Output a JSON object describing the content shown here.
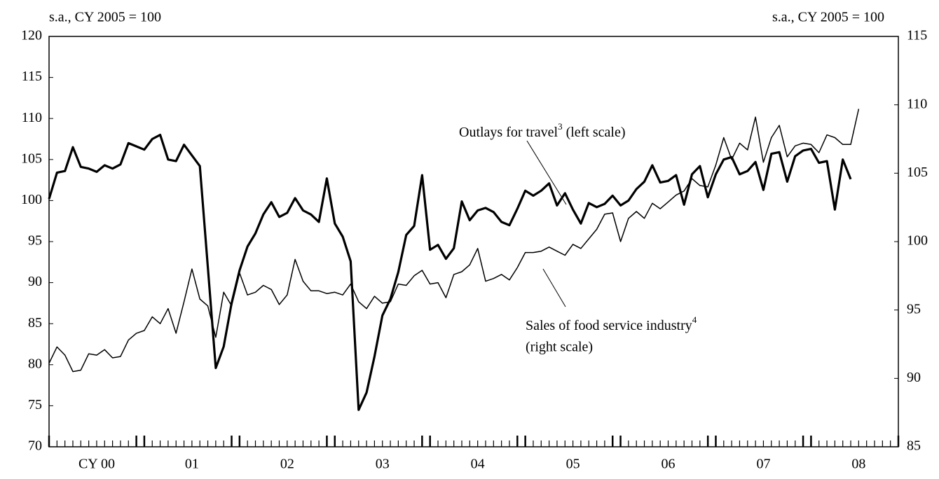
{
  "chart_data": {
    "type": "line",
    "ylabel": "s.a., CY 2005 = 100",
    "y2label": "s.a., CY 2005 = 100",
    "categories": [
      null,
      null,
      null,
      null,
      null,
      null,
      "CY 00",
      null,
      null,
      null,
      null,
      null,
      null,
      null,
      null,
      null,
      null,
      null,
      "01",
      null,
      null,
      null,
      null,
      null,
      null,
      null,
      null,
      null,
      null,
      null,
      "02",
      null,
      null,
      null,
      null,
      null,
      null,
      null,
      null,
      null,
      null,
      null,
      "03",
      null,
      null,
      null,
      null,
      null,
      null,
      null,
      null,
      null,
      null,
      null,
      "04",
      null,
      null,
      null,
      null,
      null,
      null,
      null,
      null,
      null,
      null,
      null,
      "05",
      null,
      null,
      null,
      null,
      null,
      null,
      null,
      null,
      null,
      null,
      null,
      "06",
      null,
      null,
      null,
      null,
      null,
      null,
      null,
      null,
      null,
      null,
      null,
      "07",
      null,
      null,
      null,
      null,
      null,
      null,
      null,
      null,
      null,
      null,
      null,
      "08",
      null,
      null,
      null,
      null,
      null
    ],
    "series": [
      {
        "name": "Outlays for travel",
        "color": "#000000",
        "axis": "y",
        "values": [
          100.2,
          103.4,
          103.6,
          106.5,
          104.1,
          103.9,
          103.5,
          104.3,
          103.9,
          104.4,
          107.0,
          106.6,
          106.2,
          107.5,
          108.0,
          105.0,
          104.8,
          106.8,
          105.5,
          104.2,
          92.0,
          79.6,
          82.2,
          87.5,
          91.5,
          94.4,
          96.0,
          98.3,
          99.8,
          98.0,
          98.5,
          100.3,
          98.8,
          98.3,
          97.4,
          102.7,
          97.2,
          95.6,
          92.6,
          74.5,
          76.6,
          81,
          86,
          88,
          91.3,
          95.8,
          96.9,
          103.1,
          94,
          94.6,
          92.9,
          94.2,
          99.9,
          97.6,
          98.8,
          99.1,
          98.6,
          97.4,
          97.0,
          99,
          101.2,
          100.6,
          101.2,
          102.1,
          99.4,
          100.9,
          98.9,
          97.2,
          99.7,
          99.2,
          99.6,
          100.6,
          99.4,
          100,
          101.4,
          102.3,
          104.3,
          102.2,
          102.4,
          103.1,
          99.5,
          103.2,
          104.2,
          100.4,
          103.2,
          105,
          105.3,
          103.2,
          103.6,
          104.7,
          101.3,
          105.7,
          105.9,
          102.3,
          105.4,
          106.1,
          106.3,
          104.6,
          104.8,
          98.9,
          105,
          102.6,
          null,
          null,
          null,
          null,
          null,
          null
        ]
      },
      {
        "name": "Sales of food service industry",
        "color": "#000000",
        "axis": "y2",
        "values": [
          91.1,
          92.3,
          91.7,
          90.5,
          90.6,
          91.8,
          91.7,
          92.1,
          91.5,
          91.6,
          92.8,
          93.3,
          93.5,
          94.5,
          94.0,
          95.1,
          93.3,
          95.6,
          98.0,
          95.8,
          95.3,
          93.0,
          96.3,
          95.3,
          97.7,
          96.1,
          96.3,
          96.8,
          96.5,
          95.4,
          96.1,
          98.7,
          97.1,
          96.4,
          96.4,
          96.2,
          96.3,
          96.1,
          96.9,
          95.6,
          95.1,
          96.0,
          95.5,
          95.6,
          96.9,
          96.8,
          97.5,
          97.9,
          96.9,
          97.0,
          95.9,
          97.6,
          97.8,
          98.3,
          99.5,
          97.1,
          97.3,
          97.6,
          97.2,
          98.1,
          99.2,
          99.2,
          99.3,
          99.6,
          99.3,
          99.0,
          99.8,
          99.5,
          100.2,
          100.9,
          102.0,
          102.1,
          100.0,
          101.7,
          102.2,
          101.7,
          102.8,
          102.4,
          102.9,
          103.4,
          103.7,
          104.6,
          104.1,
          104.0,
          105.6,
          107.6,
          106.0,
          107.2,
          106.7,
          109.1,
          105.8,
          107.6,
          108.5,
          106.2,
          107.0,
          107.2,
          107.1,
          106.5,
          107.8,
          107.6,
          107.1,
          107.1,
          109.7,
          null,
          null,
          null,
          null,
          null
        ]
      }
    ],
    "annotations": [
      {
        "text": "Outlays for travel",
        "sup": "3",
        "text2": " (left scale)"
      },
      {
        "text": "Sales of food service industry",
        "sup": "4",
        "text2": "(right scale)"
      }
    ],
    "ylim": [
      70,
      120
    ],
    "yticks": [
      70,
      75,
      80,
      85,
      90,
      95,
      100,
      105,
      110,
      115,
      120
    ],
    "y2lim": [
      85,
      115
    ],
    "y2ticks": [
      85,
      90,
      95,
      100,
      105,
      110,
      115
    ]
  }
}
